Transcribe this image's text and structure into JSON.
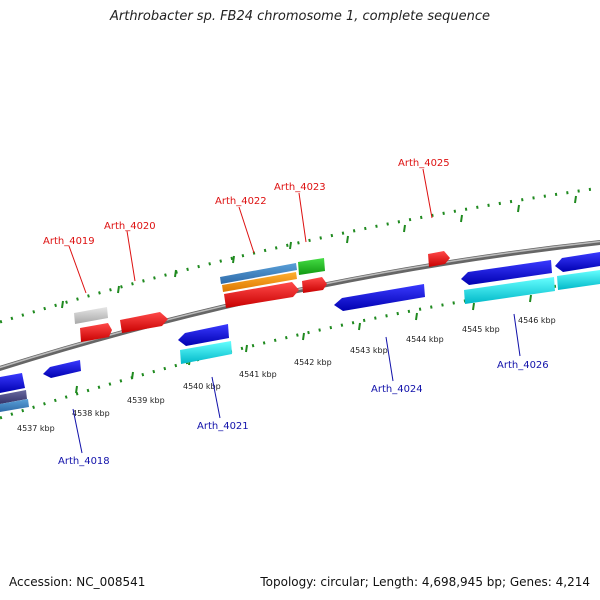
{
  "title": "Arthrobacter sp. FB24 chromosome 1, complete sequence",
  "accession_label": "Accession: NC_008541",
  "summary_label": "Topology: circular; Length: 4,698,945 bp; Genes: 4,214",
  "colors": {
    "backbone": "#888888",
    "ticks": "#1f8a1f",
    "forward_label": "#dd1111",
    "reverse_label": "#1111aa"
  },
  "scale_ticks": [
    "4537 kbp",
    "4538 kbp",
    "4539 kbp",
    "4540 kbp",
    "4541 kbp",
    "4542 kbp",
    "4543 kbp",
    "4544 kbp",
    "4545 kbp",
    "4546 kbp"
  ],
  "gene_labels": {
    "forward": [
      "Arth_4019",
      "Arth_4020",
      "Arth_4022",
      "Arth_4023",
      "Arth_4025"
    ],
    "reverse": [
      "Arth_4018",
      "Arth_4021",
      "Arth_4024",
      "Arth_4026"
    ]
  }
}
